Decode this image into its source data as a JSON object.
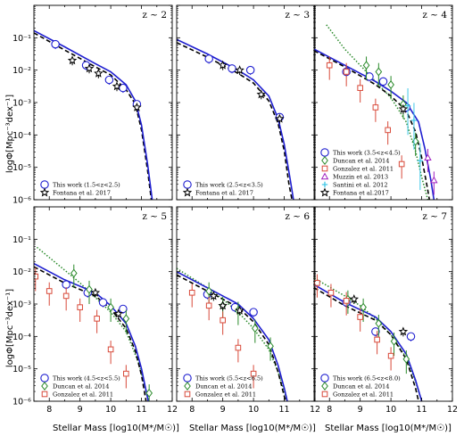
{
  "figure": {
    "xlabel": "Stellar Mass [log10(M*/M☉)]",
    "ylabel": "logΦ[Mpc⁻³dex⁻¹]",
    "x_ticks": [
      "8",
      "9",
      "10",
      "11",
      "12"
    ],
    "y_ticks": [
      "10⁻⁶",
      "10⁻⁵",
      "10⁻⁴",
      "10⁻³",
      "10⁻²",
      "10⁻¹"
    ]
  },
  "colors": {
    "this_work": "#1f1fd0",
    "fontana": "#000000",
    "duncan": "#2a8a2a",
    "gonzalez": "#d84a3a",
    "muzzin": "#a020c0",
    "santini": "#40c8e8"
  },
  "chart_data": [
    {
      "type": "scatter",
      "panel": "z ~ 2",
      "xlim": [
        7.5,
        12
      ],
      "ylim_log10": [
        -6,
        0
      ],
      "legend_placement": "lower-left",
      "legend": [
        "This work (1.5<z<2.5)",
        "Fontana et al. 2017"
      ],
      "this_work_points": [
        [
          8.2,
          -1.2
        ],
        [
          9.2,
          -1.85
        ],
        [
          9.95,
          -2.3
        ],
        [
          10.4,
          -2.55
        ],
        [
          10.85,
          -3.05
        ]
      ],
      "fontana_points": [
        [
          8.75,
          -1.7
        ],
        [
          9.3,
          -1.95
        ],
        [
          9.6,
          -2.1
        ],
        [
          10.2,
          -2.5
        ],
        [
          10.85,
          -3.15
        ]
      ],
      "this_work_curve": [
        [
          7.5,
          -0.78
        ],
        [
          8.5,
          -1.28
        ],
        [
          9.5,
          -1.8
        ],
        [
          10.0,
          -2.05
        ],
        [
          10.5,
          -2.45
        ],
        [
          10.8,
          -2.95
        ],
        [
          11.0,
          -3.7
        ],
        [
          11.2,
          -4.9
        ],
        [
          11.35,
          -6.0
        ]
      ],
      "fontana_curve": [
        [
          7.5,
          -0.85
        ],
        [
          8.5,
          -1.38
        ],
        [
          9.5,
          -1.9
        ],
        [
          10.0,
          -2.15
        ],
        [
          10.5,
          -2.6
        ],
        [
          10.8,
          -3.05
        ],
        [
          11.0,
          -3.85
        ],
        [
          11.2,
          -5.1
        ],
        [
          11.32,
          -6.0
        ]
      ]
    },
    {
      "type": "scatter",
      "panel": "z ~ 3",
      "xlim": [
        7.5,
        12
      ],
      "ylim_log10": [
        -6,
        0
      ],
      "legend_placement": "lower-left",
      "legend": [
        "This work (2.5<z<3.5)",
        "Fontana et al. 2017"
      ],
      "this_work_points": [
        [
          8.55,
          -1.65
        ],
        [
          9.3,
          -1.95
        ],
        [
          9.9,
          -2.0
        ],
        [
          10.85,
          -3.45
        ]
      ],
      "fontana_points": [
        [
          9.0,
          -1.85
        ],
        [
          9.55,
          -2.0
        ],
        [
          10.25,
          -2.75
        ],
        [
          10.85,
          -3.5
        ]
      ],
      "this_work_curve": [
        [
          7.5,
          -1.05
        ],
        [
          8.5,
          -1.5
        ],
        [
          9.5,
          -2.0
        ],
        [
          10.0,
          -2.3
        ],
        [
          10.5,
          -2.8
        ],
        [
          10.8,
          -3.5
        ],
        [
          11.0,
          -4.3
        ],
        [
          11.2,
          -5.4
        ],
        [
          11.3,
          -6.0
        ]
      ],
      "fontana_curve": [
        [
          7.5,
          -1.15
        ],
        [
          8.5,
          -1.6
        ],
        [
          9.5,
          -2.1
        ],
        [
          10.0,
          -2.4
        ],
        [
          10.5,
          -2.95
        ],
        [
          10.8,
          -3.65
        ],
        [
          11.0,
          -4.5
        ],
        [
          11.15,
          -5.5
        ],
        [
          11.25,
          -6.0
        ]
      ]
    },
    {
      "type": "scatter",
      "panel": "z ~ 4",
      "xlim": [
        7.5,
        12
      ],
      "ylim_log10": [
        -6,
        0
      ],
      "legend_placement": "lower-left",
      "legend": [
        "This work (3.5<z<4.5)",
        "Duncan et al. 2014",
        "Gonzalez et al. 2011",
        "Muzzin et al. 2013",
        "Santini et al. 2012",
        "Fontana et al.2017"
      ],
      "this_work_points": [
        [
          8.55,
          -2.05
        ],
        [
          9.3,
          -2.2
        ],
        [
          9.75,
          -2.35
        ],
        [
          10.5,
          -3.15
        ]
      ],
      "duncan_points": [
        [
          9.2,
          -1.85
        ],
        [
          9.6,
          -2.05
        ],
        [
          10.0,
          -2.45
        ],
        [
          10.4,
          -3.05
        ],
        [
          10.8,
          -4.2
        ]
      ],
      "gonzalez_points": [
        [
          8.0,
          -1.85
        ],
        [
          8.55,
          -2.05
        ],
        [
          9.0,
          -2.55
        ],
        [
          9.5,
          -3.15
        ],
        [
          9.9,
          -3.85
        ],
        [
          10.35,
          -4.9
        ]
      ],
      "muzzin_points": [
        [
          11.2,
          -4.7
        ],
        [
          11.4,
          -5.4
        ]
      ],
      "santini_points": [
        [
          10.55,
          -3.1
        ],
        [
          10.75,
          -3.55
        ],
        [
          10.95,
          -4.8
        ]
      ],
      "fontana_points": [
        [
          10.4,
          -3.2
        ]
      ],
      "this_work_curve": [
        [
          7.5,
          -1.35
        ],
        [
          8.5,
          -1.85
        ],
        [
          9.5,
          -2.35
        ],
        [
          10.0,
          -2.65
        ],
        [
          10.5,
          -3.0
        ],
        [
          10.9,
          -3.6
        ],
        [
          11.1,
          -4.4
        ],
        [
          11.3,
          -5.4
        ],
        [
          11.4,
          -6.0
        ]
      ],
      "fontana_curve": [
        [
          7.5,
          -1.4
        ],
        [
          8.5,
          -1.9
        ],
        [
          9.5,
          -2.45
        ],
        [
          10.0,
          -2.8
        ],
        [
          10.5,
          -3.25
        ],
        [
          10.8,
          -3.9
        ],
        [
          11.0,
          -4.7
        ],
        [
          11.2,
          -5.7
        ],
        [
          11.25,
          -6.0
        ]
      ],
      "duncan_curve": [
        [
          7.9,
          -0.6
        ],
        [
          8.5,
          -1.35
        ],
        [
          9.0,
          -1.85
        ],
        [
          9.5,
          -2.35
        ],
        [
          10.0,
          -2.85
        ],
        [
          10.5,
          -3.6
        ],
        [
          10.8,
          -4.5
        ],
        [
          11.0,
          -5.3
        ],
        [
          11.2,
          -6.0
        ]
      ]
    },
    {
      "type": "scatter",
      "panel": "z ~ 5",
      "xlim": [
        7.5,
        12
      ],
      "ylim_log10": [
        -6,
        0
      ],
      "legend_placement": "lower-left",
      "legend": [
        "This work (4.5<z<5.5)",
        "Duncan et al. 2014",
        "Gonzalez et al. 2011"
      ],
      "this_work_points": [
        [
          8.55,
          -2.4
        ],
        [
          9.25,
          -2.65
        ],
        [
          9.75,
          -2.95
        ],
        [
          10.4,
          -3.15
        ]
      ],
      "duncan_points": [
        [
          8.8,
          -2.05
        ],
        [
          9.3,
          -2.55
        ],
        [
          10.0,
          -3.1
        ],
        [
          10.5,
          -3.45
        ],
        [
          11.25,
          -5.75
        ]
      ],
      "gonzalez_points": [
        [
          7.55,
          -2.15
        ],
        [
          8.0,
          -2.6
        ],
        [
          8.55,
          -2.75
        ],
        [
          9.0,
          -3.1
        ],
        [
          9.55,
          -3.45
        ],
        [
          10.0,
          -4.4
        ],
        [
          10.5,
          -5.15
        ]
      ],
      "fontana_points": [
        [
          9.5,
          -2.65
        ],
        [
          10.25,
          -3.3
        ]
      ],
      "this_work_curve": [
        [
          7.5,
          -1.75
        ],
        [
          8.5,
          -2.25
        ],
        [
          9.5,
          -2.65
        ],
        [
          10.0,
          -3.05
        ],
        [
          10.5,
          -3.6
        ],
        [
          10.8,
          -4.3
        ],
        [
          11.0,
          -5.0
        ],
        [
          11.2,
          -5.9
        ],
        [
          11.22,
          -6.0
        ]
      ],
      "fontana_curve": [
        [
          7.5,
          -1.85
        ],
        [
          8.5,
          -2.35
        ],
        [
          9.5,
          -2.75
        ],
        [
          10.0,
          -3.15
        ],
        [
          10.5,
          -3.75
        ],
        [
          10.8,
          -4.45
        ],
        [
          11.0,
          -5.2
        ],
        [
          11.15,
          -6.0
        ]
      ],
      "duncan_curve": [
        [
          7.6,
          -1.25
        ],
        [
          8.5,
          -1.95
        ],
        [
          9.0,
          -2.35
        ],
        [
          9.5,
          -2.8
        ],
        [
          10.0,
          -3.25
        ],
        [
          10.5,
          -3.85
        ],
        [
          10.9,
          -4.8
        ],
        [
          11.1,
          -5.5
        ],
        [
          11.25,
          -6.0
        ]
      ]
    },
    {
      "type": "scatter",
      "panel": "z ~ 6",
      "xlim": [
        7.5,
        12
      ],
      "ylim_log10": [
        -6,
        0
      ],
      "legend_placement": "lower-left",
      "legend": [
        "This work (5.5<z<6.5)",
        "Duncan et al. 2014",
        "Gonzalez et al. 2011"
      ],
      "this_work_points": [
        [
          8.5,
          -2.7
        ],
        [
          9.4,
          -3.1
        ],
        [
          10.0,
          -3.25
        ]
      ],
      "duncan_points": [
        [
          8.55,
          -2.6
        ],
        [
          9.0,
          -3.05
        ],
        [
          9.5,
          -3.2
        ],
        [
          10.05,
          -3.75
        ],
        [
          10.55,
          -4.3
        ]
      ],
      "gonzalez_points": [
        [
          8.0,
          -2.65
        ],
        [
          8.55,
          -3.05
        ],
        [
          9.0,
          -3.5
        ],
        [
          9.5,
          -4.35
        ],
        [
          10.0,
          -5.15
        ]
      ],
      "fontana_points": [
        [
          8.7,
          -2.75
        ],
        [
          9.0,
          -3.05
        ],
        [
          9.55,
          -3.2
        ]
      ],
      "this_work_curve": [
        [
          7.5,
          -2.0
        ],
        [
          8.5,
          -2.5
        ],
        [
          9.5,
          -3.0
        ],
        [
          10.0,
          -3.45
        ],
        [
          10.5,
          -4.1
        ],
        [
          10.8,
          -4.9
        ],
        [
          11.0,
          -5.6
        ],
        [
          11.1,
          -6.0
        ]
      ],
      "fontana_curve": [
        [
          7.5,
          -2.1
        ],
        [
          8.5,
          -2.6
        ],
        [
          9.5,
          -3.1
        ],
        [
          10.0,
          -3.55
        ],
        [
          10.5,
          -4.25
        ],
        [
          10.8,
          -5.1
        ],
        [
          11.0,
          -5.85
        ],
        [
          11.05,
          -6.0
        ]
      ],
      "duncan_curve": [
        [
          7.5,
          -1.9
        ],
        [
          8.5,
          -2.5
        ],
        [
          9.0,
          -2.85
        ],
        [
          9.5,
          -3.25
        ],
        [
          10.0,
          -3.75
        ],
        [
          10.5,
          -4.4
        ],
        [
          10.8,
          -5.1
        ],
        [
          11.0,
          -5.7
        ],
        [
          11.1,
          -6.0
        ]
      ]
    },
    {
      "type": "scatter",
      "panel": "z ~ 7",
      "xlim": [
        7.5,
        12
      ],
      "ylim_log10": [
        -6,
        0
      ],
      "legend_placement": "lower-left",
      "legend": [
        "This work (6.5<z<8.0)",
        "Duncan et al. 2014",
        "Gonzalez et al. 2011"
      ],
      "this_work_points": [
        [
          8.55,
          -2.95
        ],
        [
          9.5,
          -3.85
        ],
        [
          10.65,
          -4.0
        ]
      ],
      "duncan_points": [
        [
          8.6,
          -2.85
        ],
        [
          9.1,
          -3.1
        ],
        [
          9.6,
          -3.6
        ],
        [
          10.1,
          -4.15
        ],
        [
          10.5,
          -4.7
        ]
      ],
      "gonzalez_points": [
        [
          7.6,
          -2.35
        ],
        [
          8.05,
          -2.65
        ],
        [
          8.55,
          -2.9
        ],
        [
          9.0,
          -3.4
        ],
        [
          9.55,
          -4.1
        ],
        [
          10.0,
          -4.6
        ]
      ],
      "fontana_points": [
        [
          8.8,
          -2.85
        ],
        [
          10.4,
          -3.85
        ]
      ],
      "this_work_curve": [
        [
          7.5,
          -2.4
        ],
        [
          8.5,
          -2.95
        ],
        [
          9.5,
          -3.4
        ],
        [
          10.0,
          -3.85
        ],
        [
          10.5,
          -4.55
        ],
        [
          10.8,
          -5.35
        ],
        [
          11.0,
          -6.0
        ]
      ],
      "fontana_curve": [
        [
          7.5,
          -2.5
        ],
        [
          8.5,
          -3.05
        ],
        [
          9.5,
          -3.5
        ],
        [
          10.0,
          -3.95
        ],
        [
          10.5,
          -4.7
        ],
        [
          10.8,
          -5.6
        ],
        [
          10.9,
          -6.0
        ]
      ],
      "duncan_curve": [
        [
          7.5,
          -2.2
        ],
        [
          8.5,
          -2.75
        ],
        [
          9.0,
          -3.05
        ],
        [
          9.5,
          -3.45
        ],
        [
          10.0,
          -3.95
        ],
        [
          10.5,
          -4.65
        ],
        [
          10.8,
          -5.4
        ],
        [
          11.0,
          -6.0
        ]
      ]
    }
  ],
  "panel_labels": [
    "z ~ 2",
    "z ~ 3",
    "z ~ 4",
    "z ~ 5",
    "z ~ 6",
    "z ~ 7"
  ]
}
